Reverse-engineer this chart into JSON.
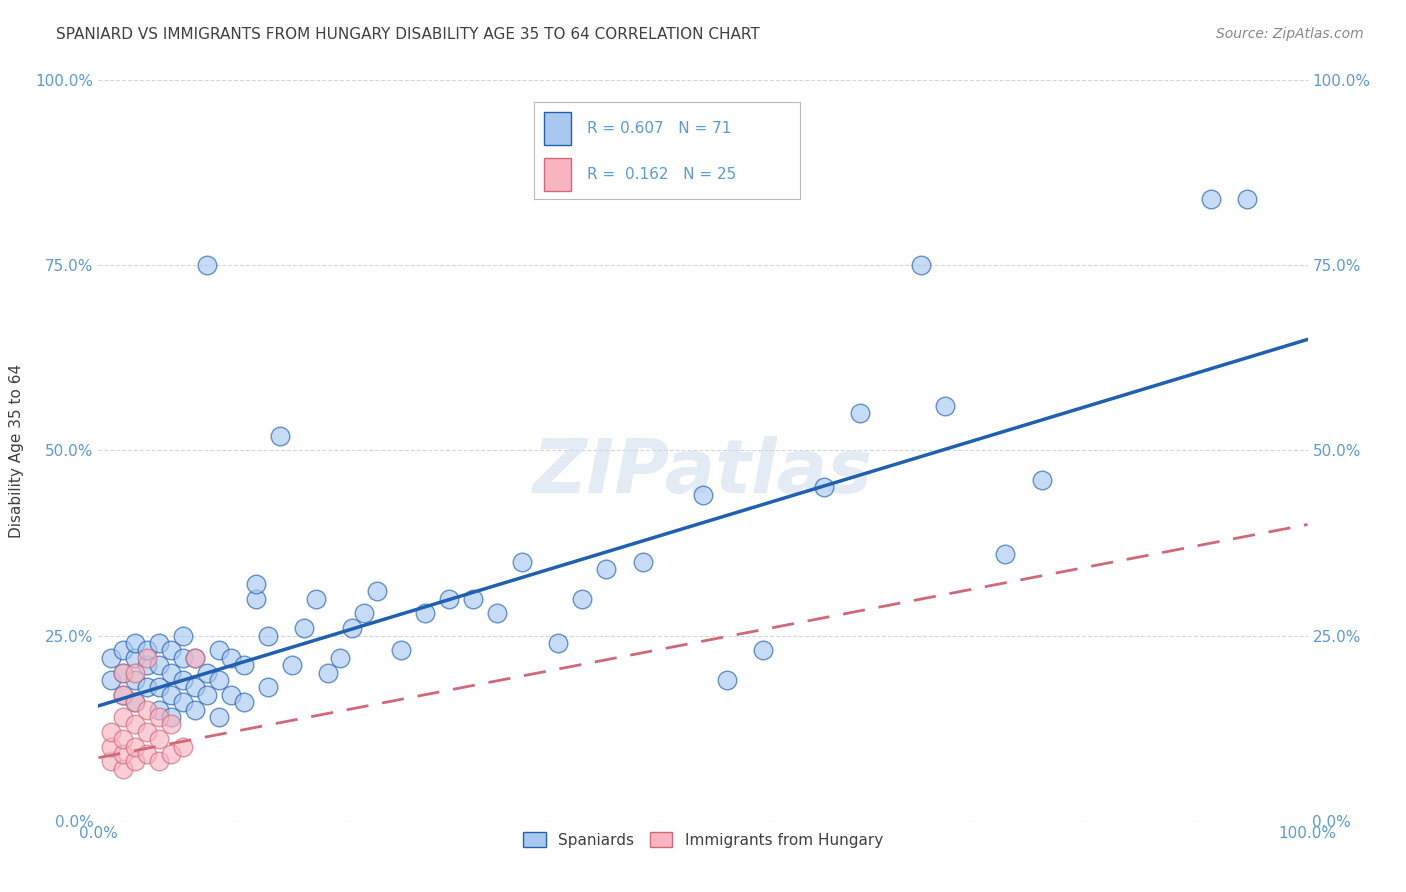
{
  "title": "SPANIARD VS IMMIGRANTS FROM HUNGARY DISABILITY AGE 35 TO 64 CORRELATION CHART",
  "source": "Source: ZipAtlas.com",
  "ylabel": "Disability Age 35 to 64",
  "xlim": [
    0,
    1.0
  ],
  "ylim": [
    0,
    1.0
  ],
  "ytick_positions": [
    0.0,
    0.25,
    0.5,
    0.75,
    1.0
  ],
  "ytick_labels": [
    "0.0%",
    "25.0%",
    "50.0%",
    "75.0%",
    "100.0%"
  ],
  "xtick_positions": [
    0.0,
    1.0
  ],
  "xtick_labels": [
    "0.0%",
    "100.0%"
  ],
  "r1": "0.607",
  "n1": "71",
  "r2": "0.162",
  "n2": "25",
  "blue_color": "#a8c8f0",
  "pink_color": "#f8b4c0",
  "line_blue": "#2060b0",
  "line_pink": "#d06878",
  "title_color": "#404040",
  "axis_color": "#5b9bd5",
  "grid_color": "#cccccc",
  "background_color": "#ffffff",
  "spaniards_x": [
    0.01,
    0.01,
    0.02,
    0.02,
    0.02,
    0.03,
    0.03,
    0.03,
    0.03,
    0.04,
    0.04,
    0.04,
    0.05,
    0.05,
    0.05,
    0.05,
    0.06,
    0.06,
    0.06,
    0.06,
    0.07,
    0.07,
    0.07,
    0.07,
    0.08,
    0.08,
    0.08,
    0.09,
    0.09,
    0.09,
    0.1,
    0.1,
    0.1,
    0.11,
    0.11,
    0.12,
    0.12,
    0.13,
    0.13,
    0.14,
    0.14,
    0.15,
    0.16,
    0.17,
    0.18,
    0.19,
    0.2,
    0.21,
    0.22,
    0.23,
    0.25,
    0.27,
    0.29,
    0.31,
    0.33,
    0.35,
    0.38,
    0.4,
    0.42,
    0.45,
    0.5,
    0.52,
    0.55,
    0.6,
    0.63,
    0.68,
    0.7,
    0.75,
    0.78,
    0.92,
    0.95
  ],
  "spaniards_y": [
    0.19,
    0.22,
    0.17,
    0.2,
    0.23,
    0.16,
    0.19,
    0.22,
    0.24,
    0.18,
    0.21,
    0.23,
    0.15,
    0.18,
    0.21,
    0.24,
    0.14,
    0.17,
    0.2,
    0.23,
    0.16,
    0.19,
    0.22,
    0.25,
    0.15,
    0.18,
    0.22,
    0.17,
    0.2,
    0.75,
    0.14,
    0.19,
    0.23,
    0.17,
    0.22,
    0.16,
    0.21,
    0.3,
    0.32,
    0.18,
    0.25,
    0.52,
    0.21,
    0.26,
    0.3,
    0.2,
    0.22,
    0.26,
    0.28,
    0.31,
    0.23,
    0.28,
    0.3,
    0.3,
    0.28,
    0.35,
    0.24,
    0.3,
    0.34,
    0.35,
    0.44,
    0.19,
    0.23,
    0.45,
    0.55,
    0.75,
    0.56,
    0.36,
    0.46,
    0.84,
    0.84
  ],
  "hungary_x": [
    0.01,
    0.01,
    0.01,
    0.02,
    0.02,
    0.02,
    0.02,
    0.02,
    0.02,
    0.03,
    0.03,
    0.03,
    0.03,
    0.03,
    0.04,
    0.04,
    0.04,
    0.04,
    0.05,
    0.05,
    0.05,
    0.06,
    0.06,
    0.07,
    0.08
  ],
  "hungary_y": [
    0.08,
    0.1,
    0.12,
    0.07,
    0.09,
    0.11,
    0.14,
    0.17,
    0.2,
    0.08,
    0.1,
    0.13,
    0.16,
    0.2,
    0.09,
    0.12,
    0.15,
    0.22,
    0.08,
    0.11,
    0.14,
    0.09,
    0.13,
    0.1,
    0.22
  ],
  "blue_line_x0": 0.0,
  "blue_line_y0": 0.155,
  "blue_line_x1": 1.0,
  "blue_line_y1": 0.65,
  "pink_line_x0": 0.0,
  "pink_line_y0": 0.085,
  "pink_line_x1": 1.0,
  "pink_line_y1": 0.4
}
